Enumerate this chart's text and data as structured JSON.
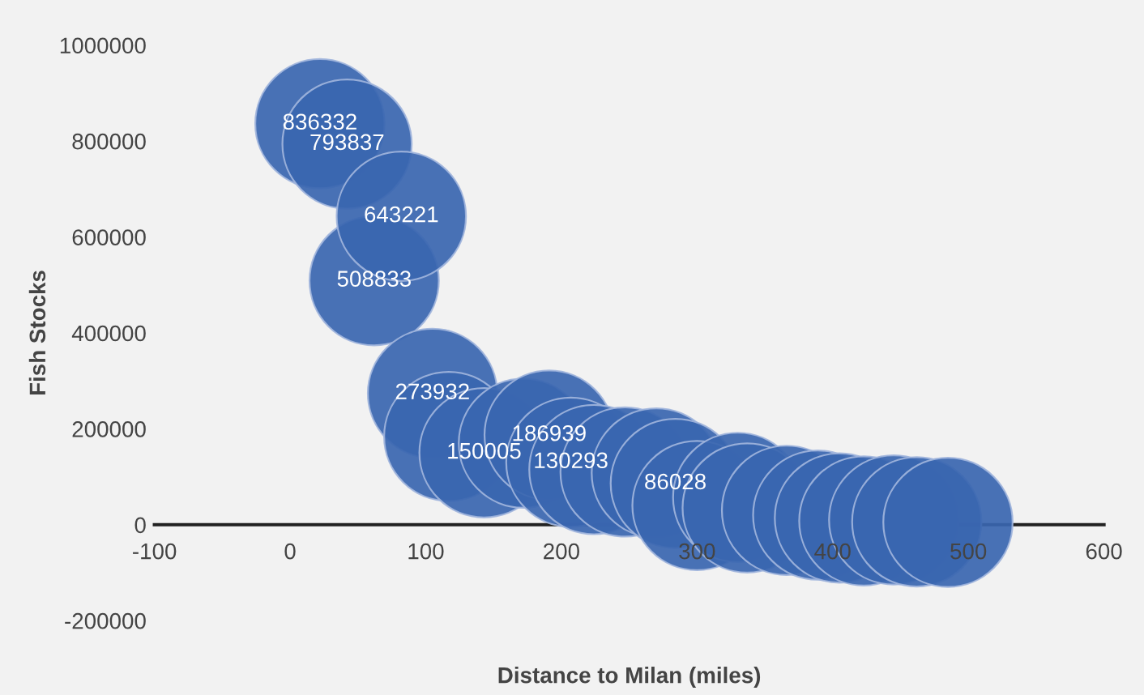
{
  "chart_data": {
    "type": "bubble",
    "xlabel": "Distance to Milan (miles)",
    "ylabel": "Fish Stocks",
    "x": [
      22,
      42,
      62,
      82,
      105,
      117,
      143,
      172,
      191,
      207,
      224,
      247,
      270,
      284,
      300,
      330,
      337,
      366,
      389,
      405,
      423,
      445,
      462,
      485
    ],
    "values": [
      836332,
      793837,
      508833,
      643221,
      273932,
      184000,
      150005,
      170000,
      186939,
      130293,
      115000,
      110000,
      108000,
      86028,
      40000,
      57000,
      35000,
      30000,
      20000,
      14000,
      8000,
      10000,
      6000,
      5000
    ],
    "sizes": [
      1,
      1,
      1,
      1,
      1,
      1,
      1,
      1,
      1,
      1,
      1,
      1,
      1,
      1,
      1,
      1,
      1,
      1,
      1,
      1,
      1,
      1,
      1,
      1
    ],
    "value_labels": [
      "836332",
      "793837",
      "508833",
      "643221",
      "273932",
      null,
      "150005",
      null,
      "186939",
      "130293",
      null,
      null,
      null,
      "86028",
      null,
      null,
      null,
      null,
      null,
      null,
      null,
      null,
      null,
      null
    ],
    "color": "#3a66b0",
    "xlim": [
      -100,
      600
    ],
    "xticks": [
      -100,
      0,
      100,
      200,
      300,
      400,
      500,
      600
    ],
    "ylim": [
      -200000,
      1000000
    ],
    "yticks": [
      -200000,
      0,
      200000,
      400000,
      600000,
      800000,
      1000000
    ],
    "grid": false
  }
}
